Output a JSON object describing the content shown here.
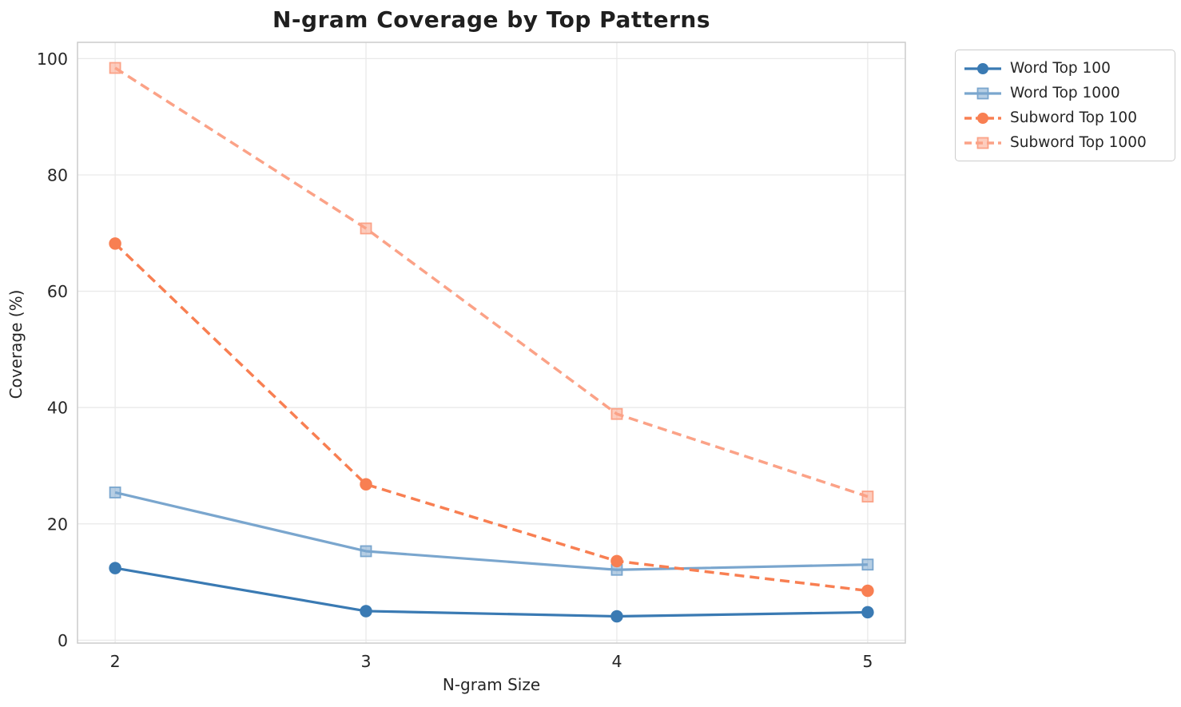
{
  "chart_data": {
    "type": "line",
    "title": "N-gram Coverage by Top Patterns",
    "xlabel": "N-gram Size",
    "ylabel": "Coverage (%)",
    "x": [
      2,
      3,
      4,
      5
    ],
    "xticks": [
      2,
      3,
      4,
      5
    ],
    "yticks": [
      0,
      20,
      40,
      60,
      80,
      100
    ],
    "xlim": [
      1.85,
      5.15
    ],
    "ylim": [
      -0.5,
      102.8
    ],
    "grid": true,
    "legend_position": "outside-upper-right",
    "series": [
      {
        "name": "Word Top 100",
        "values": [
          12.4,
          5.0,
          4.1,
          4.8
        ],
        "color": "#3a7ab3",
        "marker": "circle",
        "line_style": "solid"
      },
      {
        "name": "Word Top 1000",
        "values": [
          25.4,
          15.3,
          12.1,
          13.0
        ],
        "color": "#7aa6ce",
        "marker": "square",
        "line_style": "solid"
      },
      {
        "name": "Subword Top 100",
        "values": [
          68.2,
          26.8,
          13.6,
          8.5
        ],
        "color": "#f87f52",
        "marker": "circle",
        "line_style": "dashed"
      },
      {
        "name": "Subword Top 1000",
        "values": [
          98.4,
          70.8,
          38.9,
          24.7
        ],
        "color": "#fba287",
        "marker": "square",
        "line_style": "dashed"
      }
    ],
    "colors": {
      "grid": "#e9e9e9",
      "spine": "#cccccc",
      "tick_text": "#262626",
      "title_text": "#1f1f1f"
    }
  }
}
